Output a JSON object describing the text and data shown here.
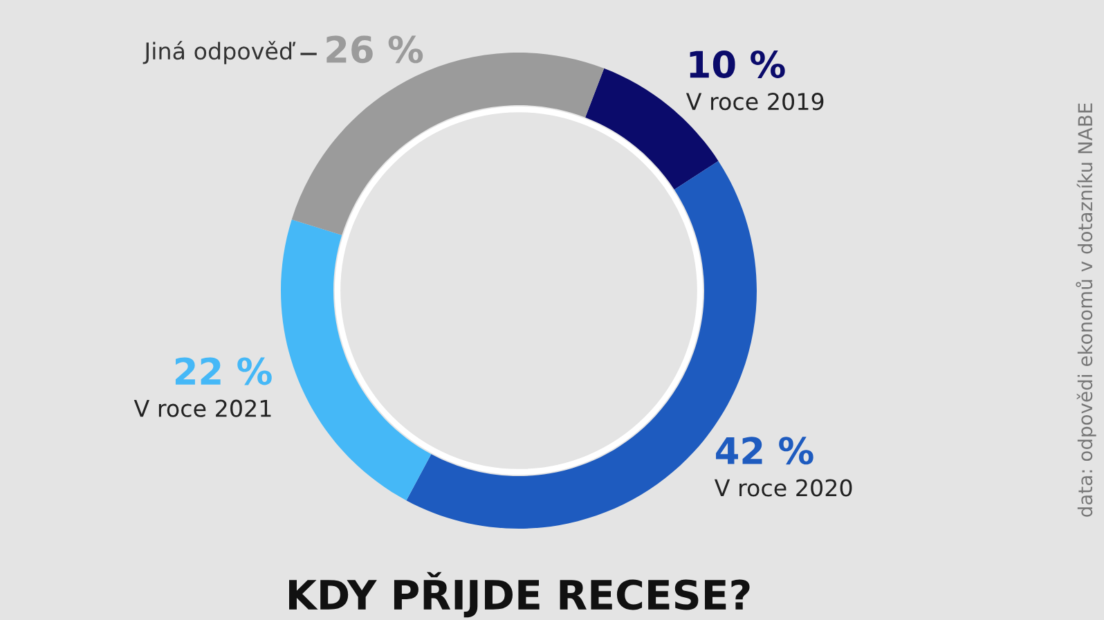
{
  "chart_data": {
    "type": "donut",
    "title": "KDY PŘIJDE RECESE?",
    "categories": [
      "V roce 2019",
      "V roce 2020",
      "V roce 2021",
      "Jiná odpověď"
    ],
    "values": [
      10,
      42,
      22,
      26
    ],
    "value_labels": [
      "10 %",
      "42 %",
      "22 %",
      "26 %"
    ],
    "colors": [
      "#0b0b6b",
      "#1e5bbf",
      "#45b8f7",
      "#9b9b9b"
    ],
    "annotations": [
      "data: odpovědi ekonomů v dotazníku NABE"
    ],
    "legend": false
  }
}
